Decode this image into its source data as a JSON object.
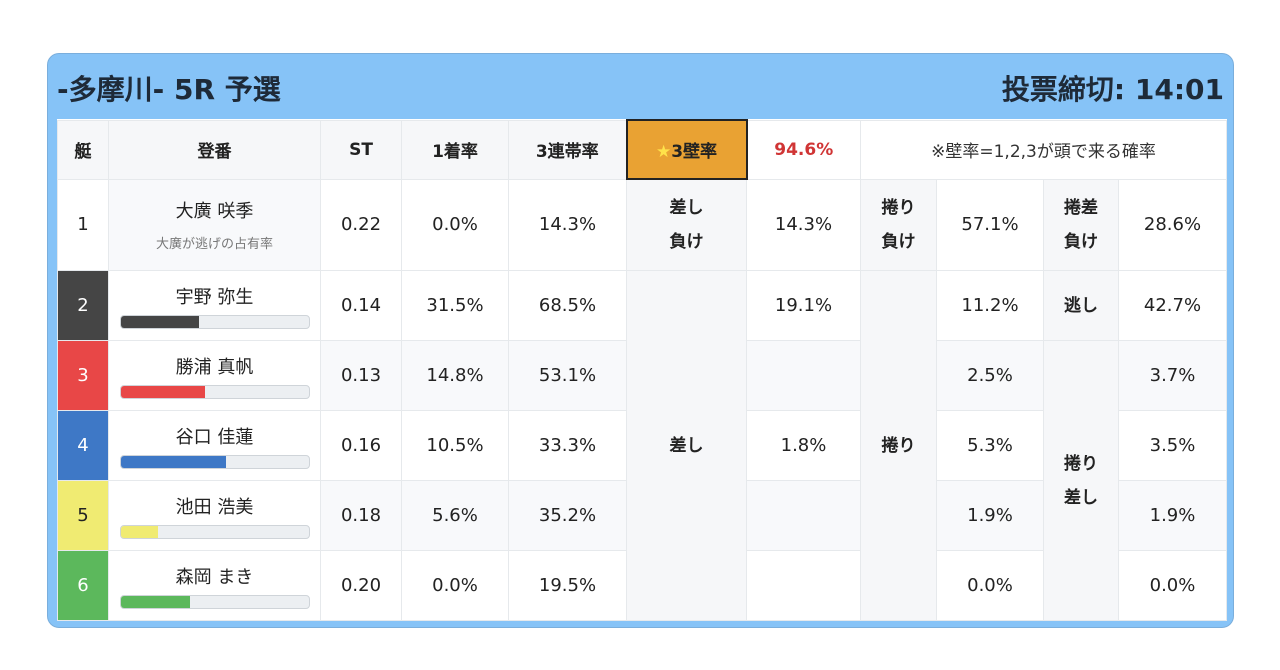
{
  "header": {
    "title": "-多摩川- 5R 予選",
    "deadline": "投票締切: 14:01"
  },
  "columns": {
    "boat": "艇",
    "name": "登番",
    "st": "ST",
    "first": "1着率",
    "top3": "3連帯率",
    "wall_label": "3壁率",
    "wall_value": "94.6%",
    "note": "※壁率=1,2,3が頭で来る確率",
    "star_icon": "star-icon"
  },
  "colors": {
    "header_bg": "#86c3f7",
    "wall_bg": "#e9a233",
    "wall_value": "#d03535"
  },
  "row1": {
    "boat": "1",
    "name": "大廣 咲季",
    "sub": "大廣が逃げの占有率",
    "st": "0.22",
    "first": "0.0%",
    "top3": "14.3%",
    "sashi_make": [
      "差し",
      "負け"
    ],
    "sashi_make_val": "14.3%",
    "makuri_make": [
      "捲り",
      "負け"
    ],
    "makuri_make_val": "57.1%",
    "makurisashi_make": [
      "捲差",
      "負け"
    ],
    "makurisashi_make_val": "28.6%"
  },
  "groups": {
    "sashi": "差し",
    "makuri": "捲り",
    "nige": "逃し",
    "makurisashi": [
      "捲り",
      "差し"
    ]
  },
  "rows": [
    {
      "boat": "2",
      "color": "#454545",
      "text_color": "#ffffff",
      "name": "宇野 弥生",
      "bar": 0.42,
      "st": "0.14",
      "first": "31.5%",
      "top3": "68.5%",
      "sashi": "19.1%",
      "makuri": "11.2%",
      "ms": "42.7%"
    },
    {
      "boat": "3",
      "color": "#e84747",
      "text_color": "#ffffff",
      "name": "勝浦 真帆",
      "bar": 0.45,
      "st": "0.13",
      "first": "14.8%",
      "top3": "53.1%",
      "sashi": "",
      "makuri": "2.5%",
      "ms": "3.7%"
    },
    {
      "boat": "4",
      "color": "#3e78c6",
      "text_color": "#ffffff",
      "name": "谷口 佳蓮",
      "bar": 0.56,
      "st": "0.16",
      "first": "10.5%",
      "top3": "33.3%",
      "sashi": "1.8%",
      "makuri": "5.3%",
      "ms": "3.5%"
    },
    {
      "boat": "5",
      "color": "#f0eb72",
      "text_color": "#222222",
      "name": "池田 浩美",
      "bar": 0.2,
      "st": "0.18",
      "first": "5.6%",
      "top3": "35.2%",
      "sashi": "",
      "makuri": "1.9%",
      "ms": "1.9%"
    },
    {
      "boat": "6",
      "color": "#5cb85c",
      "text_color": "#ffffff",
      "name": "森岡 まき",
      "bar": 0.37,
      "st": "0.20",
      "first": "0.0%",
      "top3": "19.5%",
      "sashi": "",
      "makuri": "0.0%",
      "ms": "0.0%"
    }
  ]
}
